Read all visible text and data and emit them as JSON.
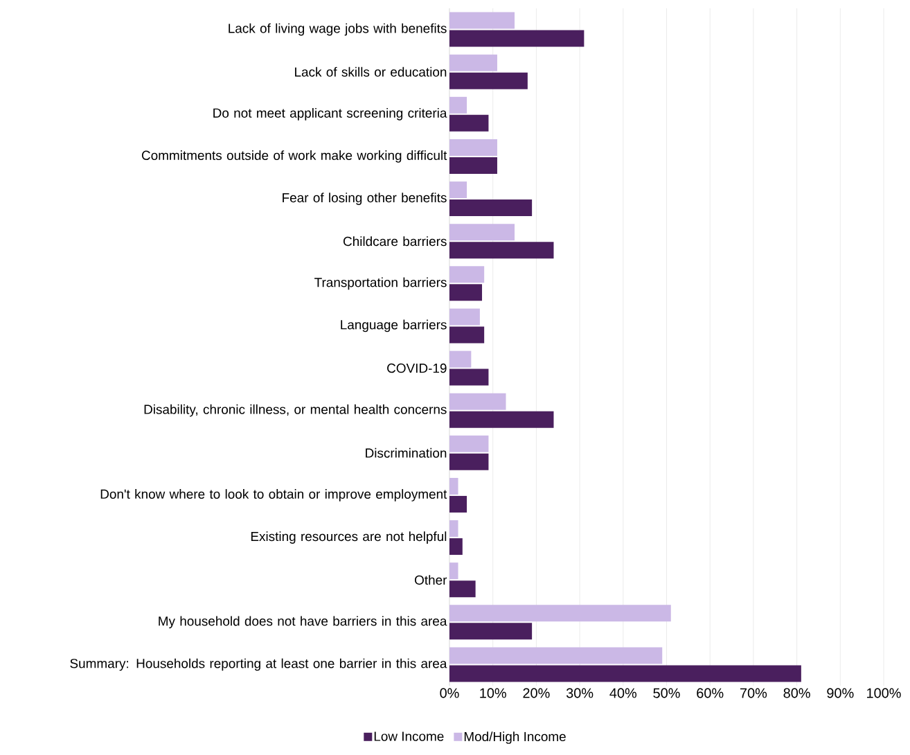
{
  "chart_data": {
    "type": "bar",
    "orientation": "horizontal",
    "categories": [
      "Lack of living wage jobs with benefits",
      "Lack of skills or education",
      "Do not meet applicant screening criteria",
      "Commitments outside of work make working difficult",
      "Fear of losing other benefits",
      "Childcare barriers",
      "Transportation barriers",
      "Language barriers",
      "COVID-19",
      "Disability, chronic illness, or mental health concerns",
      "Discrimination",
      "Don't know where to look to obtain or improve employment",
      "Existing resources are not helpful",
      "Other",
      "My household does not have barriers in this area",
      "Summary: Households reporting at least one barrier in this area"
    ],
    "series": [
      {
        "name": "Low Income",
        "color": "#4a1f5e",
        "values": [
          31,
          18,
          9,
          11,
          19,
          24,
          7.5,
          8,
          9,
          24,
          9,
          4,
          3,
          6,
          19,
          81
        ]
      },
      {
        "name": "Mod/High Income",
        "color": "#cbb8e6",
        "values": [
          15,
          11,
          4,
          11,
          4,
          15,
          8,
          7,
          5,
          13,
          9,
          2,
          2,
          2,
          51,
          49
        ]
      }
    ],
    "xlim": [
      0,
      100
    ],
    "xticks": [
      {
        "value": 0,
        "label": "0%"
      },
      {
        "value": 10,
        "label": "10%"
      },
      {
        "value": 20,
        "label": "20%"
      },
      {
        "value": 30,
        "label": "30%"
      },
      {
        "value": 40,
        "label": "40%"
      },
      {
        "value": 50,
        "label": "50%"
      },
      {
        "value": 60,
        "label": "60%"
      },
      {
        "value": 70,
        "label": "70%"
      },
      {
        "value": 80,
        "label": "80%"
      },
      {
        "value": 90,
        "label": "90%"
      },
      {
        "value": 100,
        "label": "100%"
      }
    ],
    "grid": "x",
    "legend": "bottom"
  }
}
